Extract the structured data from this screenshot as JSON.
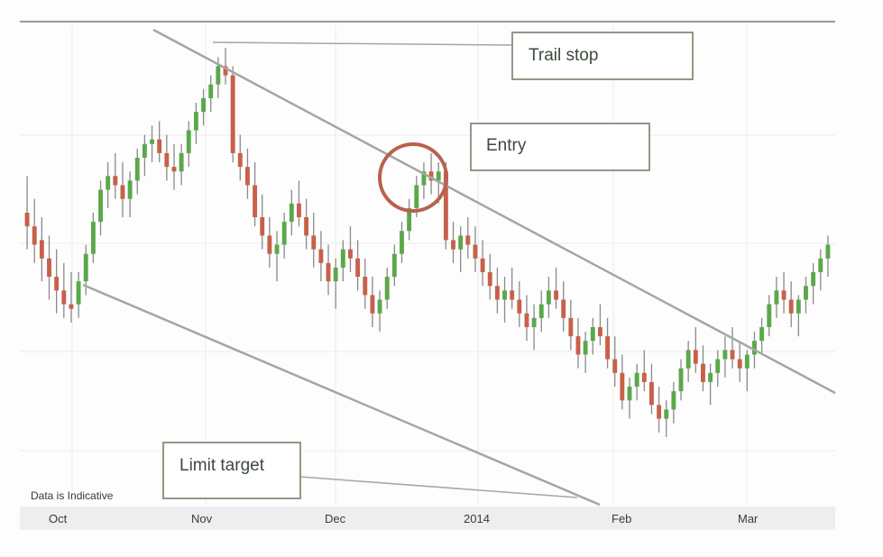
{
  "chart_data": {
    "type": "candlestick",
    "title": "",
    "xlabel": "",
    "ylabel": "",
    "x_tick_labels": [
      "Oct",
      "Nov",
      "Dec",
      "2014",
      "Feb",
      "Mar"
    ],
    "grid": true,
    "note": "Data is Indicative",
    "annotations": {
      "trail_stop": "Trail stop",
      "entry": "Entry",
      "limit_target": "Limit target"
    },
    "colors": {
      "up": "#5aa84a",
      "down": "#c8604a",
      "wick": "#8a8a8a",
      "channel_line": "#a3a89e",
      "entry_circle": "#b9614e",
      "grid": "#ececec"
    },
    "ohlc_relative": [
      [
        0.63,
        0.71,
        0.55,
        0.6
      ],
      [
        0.6,
        0.66,
        0.52,
        0.56
      ],
      [
        0.57,
        0.62,
        0.48,
        0.53
      ],
      [
        0.53,
        0.58,
        0.44,
        0.49
      ],
      [
        0.49,
        0.55,
        0.41,
        0.46
      ],
      [
        0.46,
        0.52,
        0.4,
        0.43
      ],
      [
        0.43,
        0.5,
        0.39,
        0.42
      ],
      [
        0.43,
        0.5,
        0.4,
        0.48
      ],
      [
        0.48,
        0.56,
        0.45,
        0.54
      ],
      [
        0.54,
        0.63,
        0.52,
        0.61
      ],
      [
        0.61,
        0.7,
        0.58,
        0.68
      ],
      [
        0.68,
        0.74,
        0.64,
        0.71
      ],
      [
        0.71,
        0.76,
        0.66,
        0.69
      ],
      [
        0.69,
        0.74,
        0.62,
        0.66
      ],
      [
        0.66,
        0.72,
        0.62,
        0.7
      ],
      [
        0.7,
        0.77,
        0.67,
        0.75
      ],
      [
        0.75,
        0.8,
        0.71,
        0.78
      ],
      [
        0.78,
        0.82,
        0.74,
        0.79
      ],
      [
        0.79,
        0.83,
        0.74,
        0.76
      ],
      [
        0.76,
        0.8,
        0.7,
        0.73
      ],
      [
        0.73,
        0.78,
        0.68,
        0.72
      ],
      [
        0.72,
        0.78,
        0.69,
        0.76
      ],
      [
        0.76,
        0.83,
        0.73,
        0.81
      ],
      [
        0.81,
        0.87,
        0.78,
        0.85
      ],
      [
        0.85,
        0.9,
        0.82,
        0.88
      ],
      [
        0.88,
        0.93,
        0.85,
        0.91
      ],
      [
        0.91,
        0.97,
        0.88,
        0.95
      ],
      [
        0.95,
        0.99,
        0.91,
        0.93
      ],
      [
        0.93,
        0.95,
        0.74,
        0.76
      ],
      [
        0.76,
        0.8,
        0.7,
        0.73
      ],
      [
        0.73,
        0.77,
        0.66,
        0.69
      ],
      [
        0.69,
        0.74,
        0.6,
        0.62
      ],
      [
        0.62,
        0.67,
        0.55,
        0.58
      ],
      [
        0.58,
        0.62,
        0.51,
        0.54
      ],
      [
        0.54,
        0.59,
        0.48,
        0.56
      ],
      [
        0.56,
        0.63,
        0.53,
        0.61
      ],
      [
        0.61,
        0.68,
        0.58,
        0.65
      ],
      [
        0.65,
        0.7,
        0.6,
        0.62
      ],
      [
        0.62,
        0.66,
        0.55,
        0.58
      ],
      [
        0.58,
        0.63,
        0.51,
        0.55
      ],
      [
        0.55,
        0.59,
        0.48,
        0.52
      ],
      [
        0.52,
        0.56,
        0.45,
        0.48
      ],
      [
        0.48,
        0.53,
        0.42,
        0.51
      ],
      [
        0.51,
        0.57,
        0.48,
        0.55
      ],
      [
        0.55,
        0.6,
        0.5,
        0.53
      ],
      [
        0.53,
        0.57,
        0.46,
        0.49
      ],
      [
        0.49,
        0.53,
        0.42,
        0.45
      ],
      [
        0.45,
        0.49,
        0.38,
        0.41
      ],
      [
        0.41,
        0.46,
        0.37,
        0.44
      ],
      [
        0.44,
        0.51,
        0.42,
        0.49
      ],
      [
        0.49,
        0.56,
        0.47,
        0.54
      ],
      [
        0.54,
        0.61,
        0.52,
        0.59
      ],
      [
        0.59,
        0.66,
        0.57,
        0.64
      ],
      [
        0.64,
        0.71,
        0.62,
        0.69
      ],
      [
        0.69,
        0.74,
        0.66,
        0.72
      ],
      [
        0.72,
        0.76,
        0.67,
        0.7
      ],
      [
        0.7,
        0.74,
        0.65,
        0.72
      ],
      [
        0.72,
        0.74,
        0.55,
        0.57
      ],
      [
        0.57,
        0.61,
        0.52,
        0.55
      ],
      [
        0.55,
        0.6,
        0.5,
        0.58
      ],
      [
        0.58,
        0.62,
        0.53,
        0.56
      ],
      [
        0.56,
        0.6,
        0.5,
        0.53
      ],
      [
        0.53,
        0.57,
        0.47,
        0.5
      ],
      [
        0.5,
        0.54,
        0.44,
        0.47
      ],
      [
        0.47,
        0.51,
        0.41,
        0.44
      ],
      [
        0.44,
        0.49,
        0.39,
        0.46
      ],
      [
        0.46,
        0.51,
        0.42,
        0.44
      ],
      [
        0.44,
        0.48,
        0.38,
        0.41
      ],
      [
        0.41,
        0.45,
        0.35,
        0.38
      ],
      [
        0.38,
        0.43,
        0.33,
        0.4
      ],
      [
        0.4,
        0.46,
        0.37,
        0.43
      ],
      [
        0.43,
        0.49,
        0.4,
        0.46
      ],
      [
        0.46,
        0.51,
        0.42,
        0.44
      ],
      [
        0.44,
        0.48,
        0.37,
        0.4
      ],
      [
        0.4,
        0.44,
        0.33,
        0.36
      ],
      [
        0.36,
        0.4,
        0.29,
        0.32
      ],
      [
        0.32,
        0.37,
        0.28,
        0.35
      ],
      [
        0.35,
        0.4,
        0.32,
        0.38
      ],
      [
        0.38,
        0.43,
        0.34,
        0.36
      ],
      [
        0.36,
        0.4,
        0.29,
        0.31
      ],
      [
        0.31,
        0.36,
        0.25,
        0.28
      ],
      [
        0.28,
        0.32,
        0.2,
        0.22
      ],
      [
        0.22,
        0.27,
        0.18,
        0.25
      ],
      [
        0.25,
        0.3,
        0.22,
        0.28
      ],
      [
        0.28,
        0.33,
        0.24,
        0.26
      ],
      [
        0.26,
        0.3,
        0.19,
        0.21
      ],
      [
        0.21,
        0.25,
        0.15,
        0.18
      ],
      [
        0.18,
        0.22,
        0.14,
        0.2
      ],
      [
        0.2,
        0.26,
        0.17,
        0.24
      ],
      [
        0.24,
        0.31,
        0.22,
        0.29
      ],
      [
        0.29,
        0.35,
        0.26,
        0.33
      ],
      [
        0.33,
        0.38,
        0.28,
        0.3
      ],
      [
        0.3,
        0.34,
        0.24,
        0.26
      ],
      [
        0.26,
        0.3,
        0.21,
        0.28
      ],
      [
        0.28,
        0.33,
        0.25,
        0.31
      ],
      [
        0.31,
        0.36,
        0.27,
        0.33
      ],
      [
        0.33,
        0.38,
        0.29,
        0.31
      ],
      [
        0.31,
        0.35,
        0.26,
        0.29
      ],
      [
        0.29,
        0.33,
        0.24,
        0.32
      ],
      [
        0.32,
        0.37,
        0.29,
        0.35
      ],
      [
        0.35,
        0.4,
        0.32,
        0.38
      ],
      [
        0.38,
        0.45,
        0.36,
        0.43
      ],
      [
        0.43,
        0.49,
        0.4,
        0.46
      ],
      [
        0.46,
        0.5,
        0.41,
        0.44
      ],
      [
        0.44,
        0.48,
        0.38,
        0.41
      ],
      [
        0.41,
        0.45,
        0.36,
        0.44
      ],
      [
        0.44,
        0.49,
        0.41,
        0.47
      ],
      [
        0.47,
        0.52,
        0.43,
        0.5
      ],
      [
        0.5,
        0.55,
        0.46,
        0.53
      ],
      [
        0.53,
        0.58,
        0.49,
        0.56
      ]
    ]
  }
}
